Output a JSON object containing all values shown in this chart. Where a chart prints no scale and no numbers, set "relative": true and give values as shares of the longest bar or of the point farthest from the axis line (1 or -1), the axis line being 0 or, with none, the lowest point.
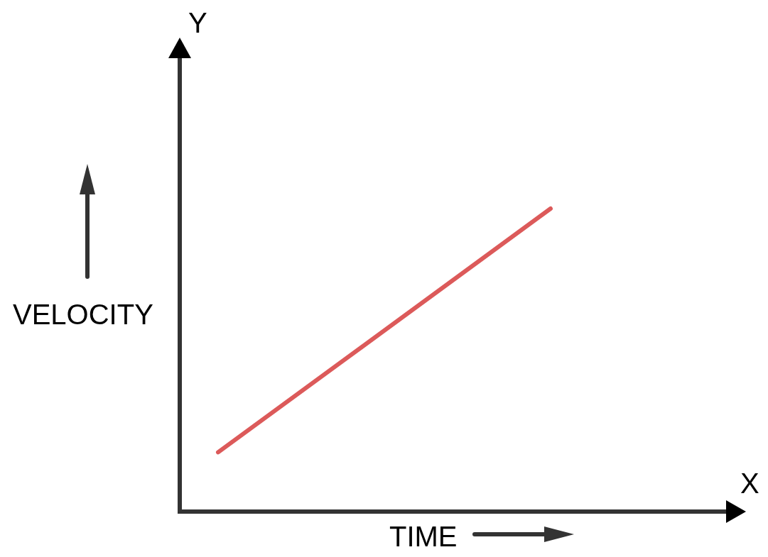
{
  "chart_data": {
    "type": "line",
    "xlabel": "TIME",
    "ylabel": "VELOCITY",
    "annotations": [
      "Y",
      "X"
    ],
    "categories": [
      null,
      null
    ],
    "relative": true,
    "series": [
      {
        "color": "#dc5a5a",
        "values": [
          0.19,
          1
        ]
      }
    ],
    "line_style": "solid"
  }
}
